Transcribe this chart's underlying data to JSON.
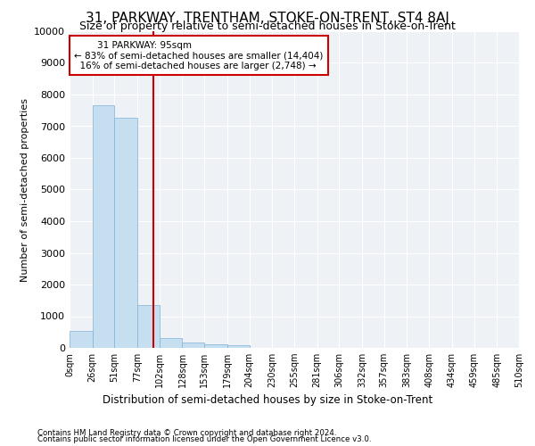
{
  "title": "31, PARKWAY, TRENTHAM, STOKE-ON-TRENT, ST4 8AJ",
  "subtitle": "Size of property relative to semi-detached houses in Stoke-on-Trent",
  "xlabel": "Distribution of semi-detached houses by size in Stoke-on-Trent",
  "ylabel": "Number of semi-detached properties",
  "footnote1": "Contains HM Land Registry data © Crown copyright and database right 2024.",
  "footnote2": "Contains public sector information licensed under the Open Government Licence v3.0.",
  "property_label": "31 PARKWAY: 95sqm",
  "pct_smaller": "← 83% of semi-detached houses are smaller (14,404)",
  "pct_larger": "16% of semi-detached houses are larger (2,748) →",
  "property_size": 95,
  "bin_edges": [
    0,
    26,
    51,
    77,
    102,
    128,
    153,
    179,
    204,
    230,
    255,
    281,
    306,
    332,
    357,
    383,
    408,
    434,
    459,
    485,
    510
  ],
  "bin_counts": [
    530,
    7650,
    7280,
    1350,
    310,
    160,
    100,
    80,
    0,
    0,
    0,
    0,
    0,
    0,
    0,
    0,
    0,
    0,
    0,
    0
  ],
  "bar_color": "#c5dff0",
  "bar_edge_color": "#7fb0d5",
  "line_color": "#cc0000",
  "annotation_box_color": "#cc0000",
  "ylim": [
    0,
    10000
  ],
  "yticks": [
    0,
    1000,
    2000,
    3000,
    4000,
    5000,
    6000,
    7000,
    8000,
    9000,
    10000
  ],
  "tick_labels": [
    "0sqm",
    "26sqm",
    "51sqm",
    "77sqm",
    "102sqm",
    "128sqm",
    "153sqm",
    "179sqm",
    "204sqm",
    "230sqm",
    "255sqm",
    "281sqm",
    "306sqm",
    "332sqm",
    "357sqm",
    "383sqm",
    "408sqm",
    "434sqm",
    "459sqm",
    "485sqm",
    "510sqm"
  ],
  "background_color": "#eef2f7",
  "grid_color": "#ffffff",
  "title_fontsize": 11,
  "subtitle_fontsize": 9
}
